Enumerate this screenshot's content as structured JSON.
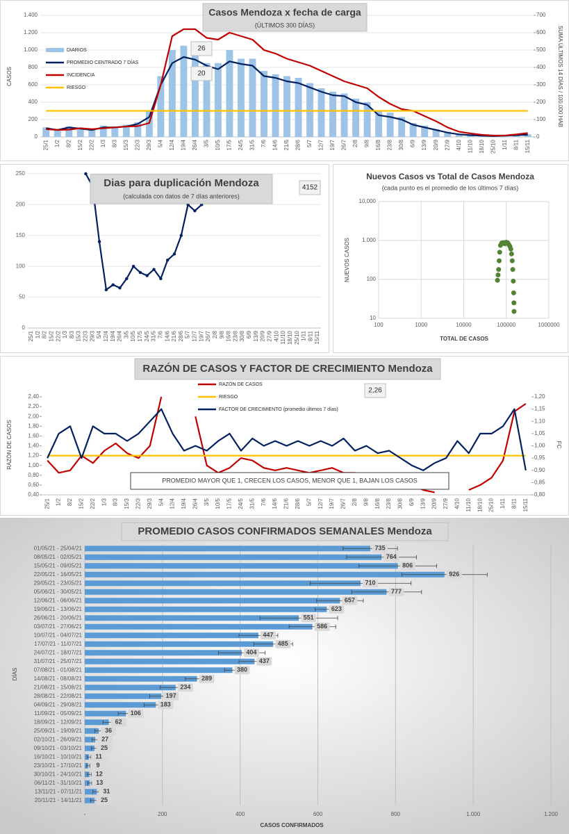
{
  "chart_data": [
    {
      "type": "combo",
      "title": "Casos Mendoza x fecha de carga",
      "subtitle": "(ÚLTIMOS 300 DÍAS)",
      "ylabel": "CASOS",
      "y2label": "SUMA ÚLTIMOS 14 DÍAS / 100.000 HAB",
      "annotations": [
        "26",
        "20"
      ],
      "grid": true,
      "categories": [
        "25/1",
        "1/2",
        "8/2",
        "15/2",
        "22/2",
        "1/3",
        "8/3",
        "15/3",
        "22/3",
        "29/3",
        "5/4",
        "12/4",
        "19/4",
        "26/4",
        "3/5",
        "10/5",
        "17/5",
        "24/5",
        "31/5",
        "7/6",
        "14/6",
        "21/6",
        "28/6",
        "5/7",
        "12/7",
        "19/7",
        "26/7",
        "2/8",
        "9/8",
        "16/8",
        "23/8",
        "30/8",
        "6/9",
        "13/9",
        "20/9",
        "27/9",
        "4/10",
        "11/10",
        "18/10",
        "25/10",
        "1/11",
        "8/11",
        "15/11"
      ],
      "ylim": [
        0,
        1400
      ],
      "yticks": [
        0,
        200,
        400,
        600,
        800,
        {
          "value": 1000,
          "label": "1.000"
        },
        {
          "value": 1200,
          "label": "1.200"
        },
        {
          "value": 1400,
          "label": "1.400"
        }
      ],
      "y2lim": [
        0,
        700
      ],
      "y2ticks": [
        0,
        100,
        200,
        300,
        400,
        500,
        600,
        700
      ],
      "series": [
        {
          "name": "DIARIOS",
          "type": "bar",
          "color": "#9dc3e6",
          "values": [
            110,
            90,
            120,
            100,
            85,
            130,
            120,
            140,
            170,
            300,
            700,
            1000,
            1050,
            950,
            850,
            850,
            1000,
            900,
            900,
            760,
            720,
            700,
            680,
            620,
            560,
            520,
            500,
            440,
            400,
            300,
            280,
            230,
            160,
            130,
            90,
            60,
            35,
            25,
            20,
            12,
            18,
            25,
            30
          ]
        },
        {
          "name": "PROMEDIO CENTRADO 7 DÍAS",
          "type": "line",
          "color": "#002060",
          "values": [
            100,
            80,
            110,
            95,
            80,
            110,
            110,
            120,
            150,
            230,
            600,
            850,
            920,
            890,
            820,
            780,
            870,
            840,
            820,
            700,
            680,
            640,
            620,
            570,
            520,
            480,
            470,
            400,
            370,
            250,
            230,
            200,
            140,
            110,
            80,
            50,
            30,
            20,
            15,
            10,
            15,
            20,
            25
          ]
        },
        {
          "name": "INCIDENCIA",
          "type": "line",
          "color": "#c00000",
          "axis": "y2",
          "values": [
            45,
            40,
            42,
            50,
            45,
            50,
            55,
            60,
            62,
            80,
            300,
            580,
            620,
            620,
            570,
            560,
            600,
            580,
            560,
            500,
            480,
            450,
            430,
            410,
            380,
            350,
            320,
            300,
            280,
            230,
            190,
            160,
            150,
            120,
            90,
            55,
            30,
            20,
            12,
            8,
            8,
            15,
            22
          ]
        },
        {
          "name": "RIESGO",
          "type": "line",
          "color": "#ffc000",
          "axis": "y2",
          "values": [
            150,
            150,
            150,
            150,
            150,
            150,
            150,
            150,
            150,
            150,
            150,
            150,
            150,
            150,
            150,
            150,
            150,
            150,
            150,
            150,
            150,
            150,
            150,
            150,
            150,
            150,
            150,
            150,
            150,
            150,
            150,
            150,
            150,
            150,
            150,
            150,
            150,
            150,
            150,
            150,
            150,
            150,
            150
          ]
        }
      ]
    },
    {
      "type": "combo",
      "title": "Dias para duplicación Mendoza",
      "subtitle": "(calculada con datos de 7 días anteriores)",
      "annotations": [
        "4152"
      ],
      "grid": true,
      "categories": [
        "25/1",
        "1/2",
        "8/2",
        "15/2",
        "22/2",
        "1/3",
        "8/3",
        "15/3",
        "22/3",
        "29/3",
        "5/4",
        "12/4",
        "19/4",
        "26/4",
        "3/5",
        "10/5",
        "17/5",
        "24/5",
        "31/5",
        "7/6",
        "14/6",
        "21/6",
        "28/6",
        "5/7",
        "12/7",
        "19/7",
        "26/7",
        "2/8",
        "9/8",
        "16/8",
        "23/8",
        "30/8",
        "6/9",
        "13/9",
        "20/9",
        "27/9",
        "4/10",
        "11/10",
        "18/10",
        "25/10",
        "1/11",
        "8/11",
        "15/11"
      ],
      "ylim": [
        0,
        250
      ],
      "yticks": [
        0,
        50,
        100,
        150,
        200,
        250
      ],
      "series": [
        {
          "name": "Dias para duplicación",
          "type": "line",
          "color": "#002060",
          "markers": true,
          "values": [
            null,
            null,
            null,
            null,
            null,
            null,
            null,
            null,
            250,
            230,
            140,
            62,
            70,
            65,
            80,
            100,
            90,
            85,
            95,
            80,
            110,
            120,
            150,
            200,
            190,
            200,
            null,
            null,
            null,
            null,
            null,
            null,
            null,
            null,
            null,
            null,
            null,
            null,
            null,
            null,
            null,
            null,
            null
          ]
        }
      ]
    },
    {
      "type": "scatter",
      "title": "Nuevos Casos vs Total de Casos Mendoza",
      "subtitle": "(cada punto es el promedio de los últimos 7 días)",
      "xlabel": "TOTAL DE CASOS",
      "ylabel": "NUEVOS CASOS",
      "xlog": true,
      "ylog": true,
      "grid": true,
      "color": "#548235",
      "xlim": [
        100,
        1000000
      ],
      "xticks": [
        100,
        1000,
        10000,
        100000,
        1000000
      ],
      "ylim": [
        10,
        10000
      ],
      "yticks": [
        10,
        100,
        {
          "value": 1000,
          "label": "1.000"
        },
        {
          "value": 10000,
          "label": "10,000"
        }
      ],
      "x": [
        62000,
        64000,
        66000,
        68000,
        70000,
        73000,
        78000,
        85000,
        92000,
        100000,
        108000,
        115000,
        122000,
        128000,
        133000,
        138000,
        142000,
        146000,
        149000,
        151000,
        152000
      ],
      "values": [
        95,
        130,
        180,
        300,
        500,
        750,
        860,
        880,
        820,
        900,
        870,
        780,
        700,
        600,
        450,
        300,
        180,
        90,
        45,
        25,
        15
      ]
    },
    {
      "type": "combo",
      "title": "RAZÓN DE CASOS Y FACTOR DE CRECIMIENTO Mendoza",
      "ylabel": "RAZÓN DE CASOS",
      "y2label": "FC",
      "annotations": [
        "2,26"
      ],
      "note": "PROMEDIO MAYOR QUE 1, CRECEN LOS CASOS, MENOR QUE 1, BAJAN LOS CASOS",
      "grid": false,
      "categories": [
        "25/1",
        "1/2",
        "8/2",
        "15/2",
        "22/2",
        "1/3",
        "8/3",
        "15/3",
        "22/3",
        "29/3",
        "5/4",
        "12/4",
        "19/4",
        "26/4",
        "3/5",
        "10/5",
        "17/5",
        "24/5",
        "31/5",
        "7/6",
        "14/6",
        "21/6",
        "28/6",
        "5/7",
        "12/7",
        "19/7",
        "26/7",
        "2/8",
        "9/8",
        "16/8",
        "23/8",
        "30/8",
        "6/9",
        "13/9",
        "20/9",
        "27/9",
        "4/10",
        "11/10",
        "18/10",
        "25/10",
        "1/11",
        "8/11",
        "15/11"
      ],
      "ylim": [
        0.4,
        2.4
      ],
      "yticks": [
        {
          "value": 0.4,
          "label": "0,40"
        },
        {
          "value": 0.6,
          "label": "0,60"
        },
        {
          "value": 0.8,
          "label": "0,80"
        },
        {
          "value": 1.0,
          "label": "1,00"
        },
        {
          "value": 1.2,
          "label": "1,20"
        },
        {
          "value": 1.4,
          "label": "1,40"
        },
        {
          "value": 1.6,
          "label": "1,60"
        },
        {
          "value": 1.8,
          "label": "1,80"
        },
        {
          "value": 2.0,
          "label": "2,00"
        },
        {
          "value": 2.2,
          "label": "2,20"
        },
        {
          "value": 2.4,
          "label": "2,40"
        }
      ],
      "y2lim": [
        0.8,
        1.2
      ],
      "y2ticks": [
        {
          "value": 0.8,
          "label": "0,80"
        },
        {
          "value": 0.85,
          "label": "0,85"
        },
        {
          "value": 0.9,
          "label": "0,90"
        },
        {
          "value": 0.95,
          "label": "0,95"
        },
        {
          "value": 1.0,
          "label": "1,00"
        },
        {
          "value": 1.05,
          "label": "1,05"
        },
        {
          "value": 1.1,
          "label": "1,10"
        },
        {
          "value": 1.15,
          "label": "1,15"
        },
        {
          "value": 1.2,
          "label": "1,20"
        }
      ],
      "series": [
        {
          "name": "RAZÓN DE CASOS",
          "type": "line",
          "color": "#c00000",
          "values": [
            1.1,
            0.85,
            0.9,
            1.2,
            1.05,
            1.3,
            1.45,
            1.25,
            1.15,
            1.4,
            2.4,
            null,
            null,
            2.0,
            1.0,
            0.85,
            0.95,
            1.15,
            1.1,
            0.95,
            0.9,
            0.95,
            0.9,
            0.85,
            0.9,
            0.95,
            0.85,
            0.85,
            0.7,
            0.8,
            0.7,
            0.65,
            0.6,
            0.5,
            0.45,
            null,
            null,
            0.5,
            0.6,
            0.75,
            1.1,
            2.1,
            2.26
          ]
        },
        {
          "name": "RIESGO",
          "type": "line",
          "color": "#ffc000",
          "values": [
            1.2,
            1.2,
            1.2,
            1.2,
            1.2,
            1.2,
            1.2,
            1.2,
            1.2,
            1.2,
            1.2,
            1.2,
            1.2,
            1.2,
            1.2,
            1.2,
            1.2,
            1.2,
            1.2,
            1.2,
            1.2,
            1.2,
            1.2,
            1.2,
            1.2,
            1.2,
            1.2,
            1.2,
            1.2,
            1.2,
            1.2,
            1.2,
            1.2,
            1.2,
            1.2,
            1.2,
            1.2,
            1.2,
            1.2,
            1.2,
            1.2,
            1.2,
            1.2
          ]
        },
        {
          "name": "FACTOR DE CRECIMIENTO (promedio últimos 7 días)",
          "type": "line",
          "color": "#002060",
          "axis": "y2",
          "values": [
            0.95,
            1.05,
            1.08,
            0.95,
            1.08,
            1.05,
            1.05,
            1.02,
            1.05,
            1.1,
            1.15,
            1.05,
            0.98,
            1.0,
            0.98,
            1.02,
            1.05,
            0.98,
            1.03,
            1.0,
            1.02,
            1.0,
            1.02,
            1.0,
            1.02,
            1.0,
            1.03,
            0.98,
            1.0,
            0.97,
            0.98,
            0.95,
            0.92,
            0.9,
            0.93,
            0.95,
            1.02,
            0.97,
            1.05,
            1.05,
            1.08,
            1.15,
            0.9
          ]
        }
      ]
    },
    {
      "type": "hbar",
      "title": "PROMEDIO CASOS CONFIRMADOS SEMANALES Mendoza",
      "xlabel": "CASOS CONFIRMADOS",
      "ylabel": "DÍAS",
      "color": "#5b9bd5",
      "grid": true,
      "xlim": [
        0,
        1200
      ],
      "xticks": [
        {
          "value": 0,
          "label": "-"
        },
        200,
        400,
        600,
        800,
        {
          "value": 1000,
          "label": "1.000"
        },
        {
          "value": 1200,
          "label": "1.200"
        }
      ],
      "categories": [
        "01/05/21 - 25/04/21",
        "08/05/21 - 02/05/21",
        "15/05/21 - 09/05/21",
        "22/05/21 - 16/05/21",
        "29/05/21 - 23/05/21",
        "05/06/21 - 30/05/21",
        "12/06/21 - 06/06/21",
        "19/06/21 - 13/06/21",
        "26/06/21 - 20/06/21",
        "03/07/21 - 27/06/21",
        "10/07/21 - 04/07/21",
        "17/07/21 - 11/07/21",
        "24/07/21 - 18/07/21",
        "31/07/21 - 25/07/21",
        "07/08/21 - 01/08/21",
        "14/08/21 - 08/08/21",
        "21/08/21 - 15/08/21",
        "28/08/21 - 22/08/21",
        "04/09/21 - 29/08/21",
        "11/09/21 - 05/09/21",
        "18/09/21 - 12/09/21",
        "25/09/21 - 19/09/21",
        "02/10/21 - 26/09/21",
        "09/10/21 - 03/10/21",
        "16/10/21 - 10/10/21",
        "23/10/21 - 17/10/21",
        "30/10/21 - 24/10/21",
        "06/11/21 - 31/10/21",
        "13/11/21 - 07/11/21",
        "20/11/21 - 14/11/21"
      ],
      "values": [
        735,
        764,
        806,
        926,
        710,
        777,
        657,
        623,
        551,
        586,
        447,
        485,
        404,
        437,
        380,
        289,
        234,
        197,
        183,
        106,
        62,
        36,
        27,
        25,
        11,
        9,
        12,
        13,
        31,
        25
      ],
      "errors": [
        70,
        90,
        100,
        110,
        130,
        90,
        60,
        30,
        100,
        60,
        50,
        50,
        60,
        40,
        20,
        30,
        40,
        30,
        30,
        20,
        15,
        10,
        8,
        8,
        5,
        4,
        5,
        5,
        10,
        10
      ]
    }
  ]
}
